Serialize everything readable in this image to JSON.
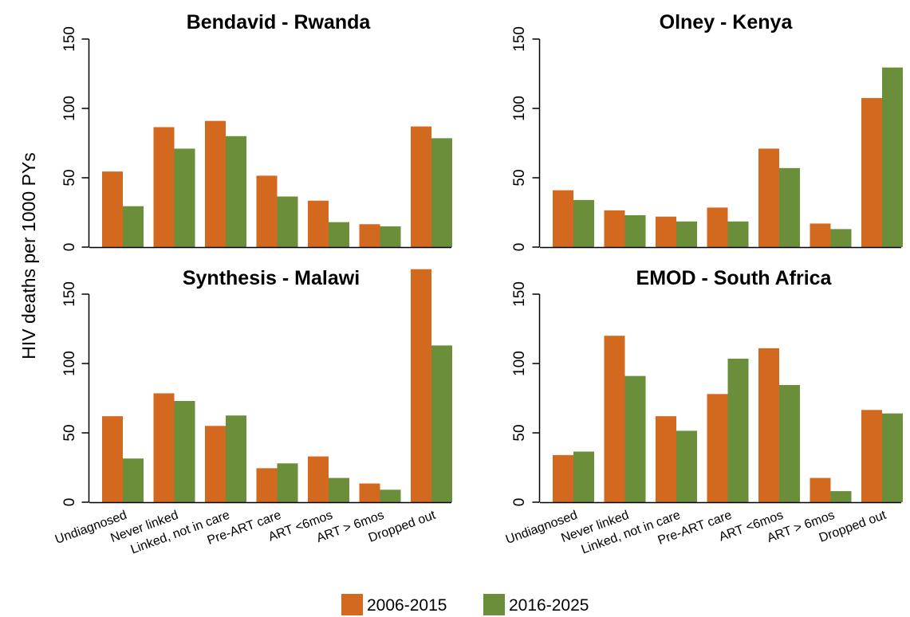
{
  "chart_data": {
    "ylabel": "HIV deaths per 1000 PYs",
    "categories": [
      "Undiagnosed",
      "Never linked",
      "Linked, not in care",
      "Pre-ART care",
      "ART <6mos",
      "ART > 6mos",
      "Dropped out"
    ],
    "legend": [
      {
        "name": "2006-2015",
        "color": "#d2691e"
      },
      {
        "name": "2016-2025",
        "color": "#6b8e3a"
      }
    ],
    "legend_position": "bottom-center",
    "grid": false,
    "panels": [
      {
        "type": "bar",
        "title": "Bendavid - Rwanda",
        "ylim": [
          0,
          150
        ],
        "yticks": [
          "0",
          "50",
          "100",
          "150"
        ],
        "series": [
          {
            "name": "2006-2015",
            "values": [
              54.5,
              86.5,
              91,
              51.5,
              33.5,
              16.5,
              87
            ]
          },
          {
            "name": "2016-2025",
            "values": [
              29.5,
              71,
              80,
              36.5,
              18,
              15,
              78.5
            ]
          }
        ]
      },
      {
        "type": "bar",
        "title": "Olney - Kenya",
        "ylim": [
          0,
          150
        ],
        "yticks": [
          "0",
          "50",
          "100",
          "150"
        ],
        "series": [
          {
            "name": "2006-2015",
            "values": [
              41,
              26.5,
              22,
              28.5,
              71,
              17,
              107.5
            ]
          },
          {
            "name": "2016-2025",
            "values": [
              34,
              23,
              18.5,
              18.5,
              57,
              13,
              129.5
            ]
          }
        ]
      },
      {
        "type": "bar",
        "title": "Synthesis - Malawi",
        "ylim": [
          0,
          150
        ],
        "yticks": [
          "0",
          "50",
          "100",
          "150"
        ],
        "series": [
          {
            "name": "2006-2015",
            "values": [
              62,
              78.5,
              55,
              24.5,
              33,
              13.5,
              168
            ]
          },
          {
            "name": "2016-2025",
            "values": [
              31.5,
              73,
              62.5,
              28,
              17.5,
              9,
              113
            ]
          }
        ]
      },
      {
        "type": "bar",
        "title": "EMOD - South Africa",
        "ylim": [
          0,
          150
        ],
        "yticks": [
          "0",
          "50",
          "100",
          "150"
        ],
        "series": [
          {
            "name": "2006-2015",
            "values": [
              34,
              120,
              62,
              78,
              111,
              17.5,
              66.5
            ]
          },
          {
            "name": "2016-2025",
            "values": [
              36.5,
              91,
              51.5,
              103.5,
              84.5,
              8,
              64
            ]
          }
        ]
      }
    ]
  }
}
